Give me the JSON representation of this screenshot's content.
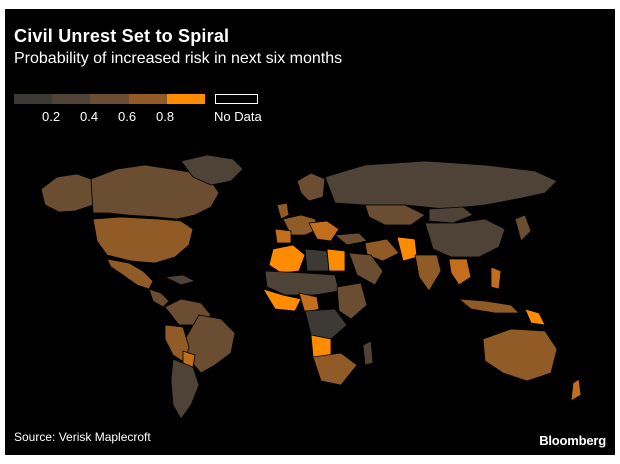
{
  "header": {
    "title": "Civil Unrest Set to Spiral",
    "subtitle": "Probability of increased risk in next six months"
  },
  "legend": {
    "ticks": [
      "0.2",
      "0.4",
      "0.6",
      "0.8"
    ],
    "no_data_label": "No Data",
    "colors": [
      "#3d3935",
      "#4f4236",
      "#6b4d31",
      "#915b28",
      "#c26e1c",
      "#ff8c00"
    ]
  },
  "palette": {
    "background": "#000000",
    "border": "#000000"
  },
  "footer": {
    "source": "Source: Verisk Maplecroft",
    "brand": "Bloomberg"
  }
}
